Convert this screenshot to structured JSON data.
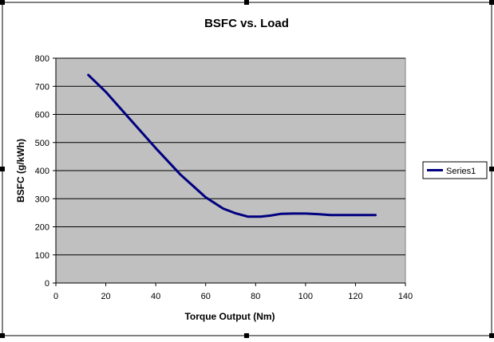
{
  "chart_data": {
    "type": "line",
    "title": "BSFC vs. Load",
    "xlabel": "Torque Output (Nm)",
    "ylabel": "BSFC (g/kWh)",
    "xlim": [
      0,
      140
    ],
    "ylim": [
      0,
      800
    ],
    "x_ticks": [
      "0",
      "20",
      "40",
      "60",
      "80",
      "100",
      "120",
      "140"
    ],
    "y_ticks": [
      "0",
      "100",
      "200",
      "300",
      "400",
      "500",
      "600",
      "700",
      "800"
    ],
    "grid": true,
    "legend": "right",
    "plot_background": "#c0c0c0",
    "series": [
      {
        "name": "Series1",
        "color": "#000080",
        "x": [
          13,
          20,
          30,
          40,
          50,
          60,
          67,
          72,
          77,
          82,
          86,
          90,
          95,
          100,
          105,
          110,
          120,
          128
        ],
        "y": [
          740,
          680,
          580,
          480,
          385,
          305,
          265,
          248,
          236,
          236,
          240,
          246,
          247,
          247,
          245,
          242,
          242,
          242
        ]
      }
    ]
  }
}
